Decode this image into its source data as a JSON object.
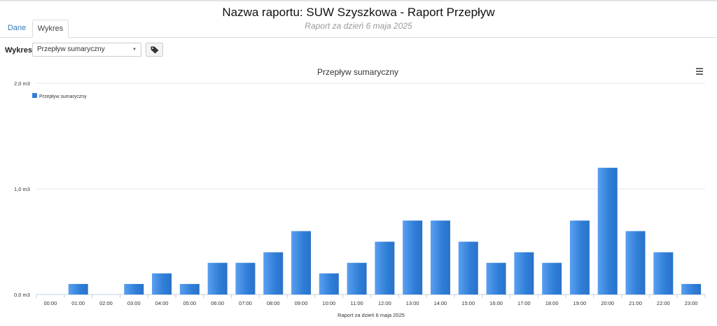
{
  "report": {
    "title": "Nazwa raportu: SUW Szyszkowa - Raport Przepływ",
    "subtitle": "Raport za dzień 6 maja 2025"
  },
  "tabs": [
    {
      "label": "Dane",
      "active": false
    },
    {
      "label": "Wykres",
      "active": true
    }
  ],
  "controls": {
    "chart_label": "Wykres:",
    "chart_select_value": "Przepływ sumaryczny",
    "tag_button_icon": "tag-icon"
  },
  "chart_menu_icon": "hamburger-menu-icon",
  "chart_data": {
    "type": "bar",
    "title": "Przepływ sumaryczny",
    "xlabel": "Raport za dzień 6 maja 2025",
    "ylabel": "",
    "legend_position": "top-left",
    "grid": true,
    "ylim": [
      0,
      2
    ],
    "y_ticks": [
      {
        "value": 0,
        "label": "0,0 m3"
      },
      {
        "value": 1,
        "label": "1,0 m3"
      },
      {
        "value": 2,
        "label": "2,0 m3"
      }
    ],
    "categories": [
      "00:00",
      "01:00",
      "02:00",
      "03:00",
      "04:00",
      "05:00",
      "06:00",
      "07:00",
      "08:00",
      "09:00",
      "10:00",
      "11:00",
      "12:00",
      "13:00",
      "14:00",
      "15:00",
      "16:00",
      "17:00",
      "18:00",
      "19:00",
      "20:00",
      "21:00",
      "22:00",
      "23:00"
    ],
    "series": [
      {
        "name": "Przepływ sumaryczny",
        "color": "#2f7ed8",
        "values": [
          0,
          0.1,
          0,
          0.1,
          0.2,
          0.1,
          0.3,
          0.3,
          0.4,
          0.6,
          0.2,
          0.3,
          0.5,
          0.7,
          0.7,
          0.5,
          0.3,
          0.4,
          0.3,
          0.7,
          1.2,
          0.6,
          0.4,
          0.1
        ]
      }
    ]
  }
}
